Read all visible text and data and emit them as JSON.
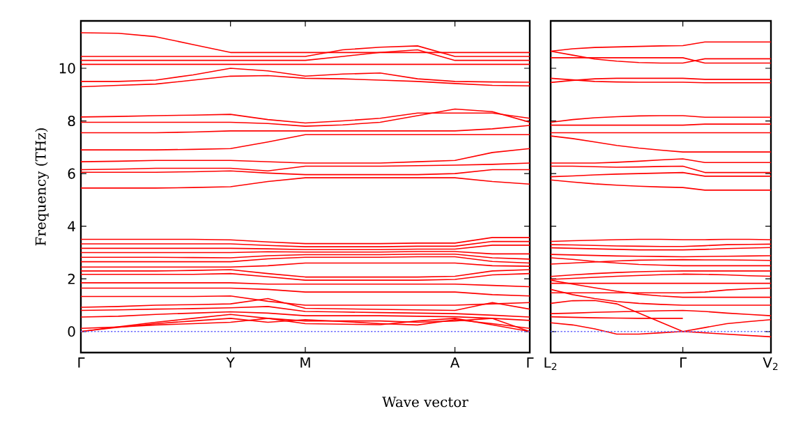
{
  "chart_data": [
    {
      "type": "line",
      "ylabel": "Frequency (THz)",
      "xlabel": "Wave vector",
      "ylim": [
        -0.8,
        11.8
      ],
      "categories": [
        "Γ",
        null,
        null,
        null,
        "Y",
        null,
        "M",
        null,
        null,
        null,
        "A",
        null,
        "Γ"
      ],
      "yticks": [
        0,
        2,
        4,
        6,
        8,
        10
      ],
      "ref_lines": [
        {
          "axis": "y",
          "value": 0,
          "color": "#6666ff",
          "line_style": "dotted"
        }
      ],
      "series": [
        {
          "color": "#ff0000",
          "values": [
            11.35,
            11.33,
            11.2,
            10.9,
            10.6,
            10.6,
            10.6,
            10.6,
            10.6,
            10.6,
            10.6,
            10.6,
            10.6
          ]
        },
        {
          "color": "#ff0000",
          "values": [
            10.45,
            10.45,
            10.45,
            10.45,
            10.45,
            10.45,
            10.45,
            10.7,
            10.8,
            10.85,
            10.45,
            10.45,
            10.45
          ]
        },
        {
          "color": "#ff0000",
          "values": [
            10.3,
            10.3,
            10.3,
            10.3,
            10.3,
            10.3,
            10.3,
            10.45,
            10.6,
            10.7,
            10.3,
            10.3,
            10.3
          ]
        },
        {
          "color": "#ff0000",
          "values": [
            10.15,
            10.15,
            10.15,
            10.15,
            10.15,
            10.15,
            10.15,
            10.15,
            10.15,
            10.15,
            10.15,
            10.15,
            10.15
          ]
        },
        {
          "color": "#ff0000",
          "values": [
            9.5,
            9.5,
            9.55,
            9.75,
            10.0,
            9.9,
            9.7,
            9.78,
            9.82,
            9.6,
            9.5,
            9.48,
            9.47
          ]
        },
        {
          "color": "#ff0000",
          "values": [
            9.3,
            9.35,
            9.4,
            9.55,
            9.7,
            9.72,
            9.62,
            9.6,
            9.55,
            9.5,
            9.42,
            9.35,
            9.33
          ]
        },
        {
          "color": "#ff0000",
          "values": [
            8.15,
            8.17,
            8.2,
            8.22,
            8.25,
            8.05,
            7.92,
            8.0,
            8.1,
            8.3,
            8.3,
            8.3,
            8.1
          ]
        },
        {
          "color": "#ff0000",
          "values": [
            7.95,
            7.95,
            7.95,
            7.95,
            7.95,
            7.9,
            7.8,
            7.85,
            7.95,
            8.2,
            8.45,
            8.35,
            7.95
          ]
        },
        {
          "color": "#ff0000",
          "values": [
            7.55,
            7.55,
            7.55,
            7.58,
            7.62,
            7.62,
            7.62,
            7.62,
            7.62,
            7.62,
            7.62,
            7.7,
            7.83
          ]
        },
        {
          "color": "#ff0000",
          "values": [
            6.9,
            6.9,
            6.9,
            6.92,
            6.95,
            7.2,
            7.48,
            7.48,
            7.48,
            7.48,
            7.48,
            7.48,
            7.48
          ]
        },
        {
          "color": "#ff0000",
          "values": [
            6.45,
            6.47,
            6.5,
            6.5,
            6.5,
            6.45,
            6.4,
            6.4,
            6.4,
            6.45,
            6.5,
            6.8,
            6.95
          ]
        },
        {
          "color": "#ff0000",
          "values": [
            6.15,
            6.17,
            6.2,
            6.2,
            6.2,
            6.1,
            6.28,
            6.28,
            6.28,
            6.3,
            6.32,
            6.35,
            6.4
          ]
        },
        {
          "color": "#ff0000",
          "values": [
            6.05,
            6.05,
            6.05,
            6.07,
            6.1,
            6.02,
            5.96,
            5.96,
            5.96,
            5.96,
            6.0,
            6.15,
            6.15
          ]
        },
        {
          "color": "#ff0000",
          "values": [
            5.45,
            5.45,
            5.45,
            5.47,
            5.5,
            5.7,
            5.84,
            5.84,
            5.84,
            5.84,
            5.84,
            5.7,
            5.6
          ]
        },
        {
          "color": "#ff0000",
          "values": [
            3.5,
            3.5,
            3.5,
            3.5,
            3.48,
            3.4,
            3.34,
            3.34,
            3.34,
            3.36,
            3.36,
            3.57,
            3.57
          ]
        },
        {
          "color": "#ff0000",
          "values": [
            3.33,
            3.33,
            3.33,
            3.33,
            3.33,
            3.27,
            3.22,
            3.22,
            3.22,
            3.24,
            3.24,
            3.42,
            3.42
          ]
        },
        {
          "color": "#ff0000",
          "values": [
            3.16,
            3.16,
            3.16,
            3.16,
            3.16,
            3.14,
            3.11,
            3.11,
            3.11,
            3.13,
            3.13,
            3.28,
            3.28
          ]
        },
        {
          "color": "#ff0000",
          "values": [
            3.0,
            3.0,
            3.0,
            3.0,
            3.0,
            3.03,
            3.02,
            3.02,
            3.02,
            3.04,
            3.04,
            2.95,
            2.95
          ]
        },
        {
          "color": "#ff0000",
          "values": [
            2.82,
            2.82,
            2.82,
            2.81,
            2.8,
            2.88,
            2.92,
            2.92,
            2.92,
            2.94,
            2.94,
            2.8,
            2.75
          ]
        },
        {
          "color": "#ff0000",
          "values": [
            2.65,
            2.65,
            2.65,
            2.65,
            2.65,
            2.76,
            2.82,
            2.82,
            2.82,
            2.84,
            2.84,
            2.66,
            2.6
          ]
        },
        {
          "color": "#ff0000",
          "values": [
            2.45,
            2.45,
            2.45,
            2.45,
            2.45,
            2.5,
            2.6,
            2.6,
            2.6,
            2.6,
            2.6,
            2.5,
            2.48
          ]
        },
        {
          "color": "#ff0000",
          "values": [
            2.3,
            2.3,
            2.3,
            2.32,
            2.35,
            2.2,
            2.07,
            2.07,
            2.07,
            2.07,
            2.1,
            2.3,
            2.35
          ]
        },
        {
          "color": "#ff0000",
          "values": [
            2.17,
            2.17,
            2.17,
            2.17,
            2.2,
            2.08,
            1.95,
            1.95,
            1.95,
            1.95,
            1.98,
            2.15,
            2.2
          ]
        },
        {
          "color": "#ff0000",
          "values": [
            1.85,
            1.85,
            1.85,
            1.85,
            1.85,
            1.8,
            1.8,
            1.8,
            1.8,
            1.8,
            1.8,
            1.75,
            1.7
          ]
        },
        {
          "color": "#ff0000",
          "values": [
            1.65,
            1.65,
            1.65,
            1.65,
            1.65,
            1.6,
            1.5,
            1.5,
            1.5,
            1.5,
            1.5,
            1.4,
            1.35
          ]
        },
        {
          "color": "#ff0000",
          "values": [
            1.33,
            1.33,
            1.33,
            1.33,
            1.35,
            1.15,
            1.0,
            1.0,
            1.0,
            1.0,
            1.0,
            1.05,
            1.1
          ]
        },
        {
          "color": "#ff0000",
          "values": [
            0.92,
            0.95,
            1.0,
            1.02,
            1.05,
            1.25,
            0.88,
            0.86,
            0.84,
            0.82,
            0.8,
            1.1,
            0.85
          ]
        },
        {
          "color": "#ff0000",
          "values": [
            0.8,
            0.82,
            0.85,
            0.87,
            0.9,
            0.95,
            0.76,
            0.74,
            0.72,
            0.7,
            0.68,
            0.62,
            0.55
          ]
        },
        {
          "color": "#ff0000",
          "values": [
            0.55,
            0.58,
            0.65,
            0.7,
            0.75,
            0.7,
            0.6,
            0.6,
            0.6,
            0.58,
            0.56,
            0.5,
            0.42
          ]
        },
        {
          "color": "#ff0000",
          "values": [
            0.0,
            0.18,
            0.35,
            0.5,
            0.65,
            0.5,
            0.4,
            0.4,
            0.4,
            0.35,
            0.4,
            0.5,
            0.0
          ]
        },
        {
          "color": "#ff0000",
          "values": [
            0.0,
            0.16,
            0.3,
            0.4,
            0.5,
            0.35,
            0.45,
            0.38,
            0.3,
            0.25,
            0.45,
            0.3,
            0.12
          ]
        },
        {
          "color": "#ff0000",
          "values": [
            0.12,
            0.17,
            0.25,
            0.3,
            0.35,
            0.5,
            0.3,
            0.28,
            0.26,
            0.4,
            0.5,
            0.25,
            0.0
          ]
        }
      ]
    },
    {
      "type": "line",
      "ylim": [
        -0.8,
        11.8
      ],
      "tick_labels": "x",
      "categories": [
        "L$_{2}$",
        null,
        null,
        null,
        null,
        null,
        "Γ",
        null,
        null,
        null,
        "V$_{2}$"
      ],
      "yticks": [
        {
          "value": 0,
          "label": null
        },
        {
          "value": 2,
          "label": null
        },
        {
          "value": 4,
          "label": null
        },
        {
          "value": 6,
          "label": null
        },
        {
          "value": 8,
          "label": null
        },
        {
          "value": 10,
          "label": null
        }
      ],
      "ref_lines": [
        {
          "axis": "y",
          "value": 0,
          "color": "#6666ff",
          "line_style": "dotted"
        }
      ],
      "series": [
        {
          "color": "#ff0000",
          "values": [
            10.65,
            10.74,
            10.79,
            10.81,
            10.83,
            10.85,
            10.86,
            11.0,
            11.0,
            11.0,
            11.0
          ]
        },
        {
          "color": "#ff0000",
          "values": [
            10.65,
            10.5,
            10.35,
            10.27,
            10.22,
            10.2,
            10.2,
            10.36,
            10.36,
            10.36,
            10.36
          ]
        },
        {
          "color": "#ff0000",
          "values": [
            10.4,
            10.4,
            10.4,
            10.4,
            10.4,
            10.4,
            10.4,
            10.2,
            10.2,
            10.2,
            10.2
          ]
        },
        {
          "color": "#ff0000",
          "values": [
            9.62,
            9.56,
            9.5,
            9.48,
            9.47,
            9.47,
            9.47,
            9.45,
            9.45,
            9.45,
            9.45
          ]
        },
        {
          "color": "#ff0000",
          "values": [
            9.46,
            9.54,
            9.6,
            9.62,
            9.62,
            9.62,
            9.62,
            9.58,
            9.58,
            9.58,
            9.58
          ]
        },
        {
          "color": "#ff0000",
          "values": [
            7.95,
            8.05,
            8.12,
            8.16,
            8.19,
            8.2,
            8.2,
            8.14,
            8.14,
            8.14,
            8.14
          ]
        },
        {
          "color": "#ff0000",
          "values": [
            7.84,
            7.84,
            7.84,
            7.84,
            7.84,
            7.84,
            7.84,
            7.88,
            7.88,
            7.88,
            7.88
          ]
        },
        {
          "color": "#ff0000",
          "values": [
            7.43,
            7.33,
            7.2,
            7.07,
            6.97,
            6.89,
            6.82,
            6.82,
            6.82,
            6.82,
            6.82
          ]
        },
        {
          "color": "#ff0000",
          "values": [
            7.55,
            7.55,
            7.55,
            7.55,
            7.55,
            7.55,
            7.55,
            7.55,
            7.55,
            7.55,
            7.55
          ]
        },
        {
          "color": "#ff0000",
          "values": [
            6.4,
            6.4,
            6.4,
            6.43,
            6.47,
            6.52,
            6.56,
            6.42,
            6.42,
            6.42,
            6.42
          ]
        },
        {
          "color": "#ff0000",
          "values": [
            6.28,
            6.28,
            6.26,
            6.24,
            6.25,
            6.27,
            6.28,
            6.04,
            6.04,
            6.04,
            6.04
          ]
        },
        {
          "color": "#ff0000",
          "values": [
            5.88,
            5.91,
            5.95,
            5.98,
            6.0,
            6.02,
            6.04,
            5.9,
            5.9,
            5.9,
            5.9
          ]
        },
        {
          "color": "#ff0000",
          "values": [
            5.76,
            5.68,
            5.61,
            5.56,
            5.52,
            5.49,
            5.47,
            5.37,
            5.37,
            5.37,
            5.37
          ]
        },
        {
          "color": "#ff0000",
          "values": [
            3.42,
            3.45,
            3.47,
            3.49,
            3.5,
            3.5,
            3.49,
            3.49,
            3.5,
            3.5,
            3.49
          ]
        },
        {
          "color": "#ff0000",
          "values": [
            3.3,
            3.29,
            3.27,
            3.25,
            3.24,
            3.23,
            3.23,
            3.26,
            3.3,
            3.31,
            3.32
          ]
        },
        {
          "color": "#ff0000",
          "values": [
            3.18,
            3.16,
            3.14,
            3.12,
            3.1,
            3.1,
            3.1,
            3.12,
            3.15,
            3.17,
            3.19
          ]
        },
        {
          "color": "#ff0000",
          "values": [
            2.93,
            2.91,
            2.89,
            2.87,
            2.86,
            2.85,
            2.84,
            2.85,
            2.86,
            2.87,
            2.88
          ]
        },
        {
          "color": "#ff0000",
          "values": [
            2.56,
            2.6,
            2.64,
            2.68,
            2.71,
            2.72,
            2.73,
            2.72,
            2.72,
            2.71,
            2.7
          ]
        },
        {
          "color": "#ff0000",
          "values": [
            2.8,
            2.74,
            2.66,
            2.6,
            2.55,
            2.52,
            2.5,
            2.5,
            2.5,
            2.5,
            2.5
          ]
        },
        {
          "color": "#ff0000",
          "values": [
            2.09,
            2.15,
            2.2,
            2.24,
            2.27,
            2.29,
            2.3,
            2.3,
            2.3,
            2.3,
            2.3
          ]
        },
        {
          "color": "#ff0000",
          "values": [
            1.98,
            2.02,
            2.06,
            2.1,
            2.13,
            2.16,
            2.18,
            2.17,
            2.15,
            2.12,
            2.1
          ]
        },
        {
          "color": "#ff0000",
          "values": [
            1.83,
            1.83,
            1.83,
            1.83,
            1.83,
            1.83,
            1.83,
            1.83,
            1.83,
            1.83,
            1.83
          ]
        },
        {
          "color": "#ff0000",
          "values": [
            1.47,
            1.47,
            1.47,
            1.47,
            1.47,
            1.47,
            1.47,
            1.5,
            1.58,
            1.62,
            1.65
          ]
        },
        {
          "color": "#ff0000",
          "values": [
            1.95,
            1.8,
            1.66,
            1.53,
            1.42,
            1.35,
            1.3,
            1.3,
            1.3,
            1.3,
            1.3
          ]
        },
        {
          "color": "#ff0000",
          "values": [
            1.07,
            1.17,
            1.18,
            1.05,
            0.7,
            0.35,
            0.0,
            0.15,
            0.3,
            0.38,
            0.45
          ]
        },
        {
          "color": "#ff0000",
          "values": [
            1.6,
            1.4,
            1.25,
            1.14,
            1.07,
            1.03,
            1.0,
            1.0,
            1.0,
            1.0,
            1.0
          ]
        },
        {
          "color": "#ff0000",
          "values": [
            0.68,
            0.7,
            0.73,
            0.75,
            0.77,
            0.79,
            0.8,
            0.76,
            0.7,
            0.65,
            0.6
          ]
        },
        {
          "color": "#ff0000",
          "values": [
            0.56,
            0.54,
            0.52,
            0.51,
            0.5,
            0.5,
            0.5,
            null,
            null,
            null,
            null
          ]
        },
        {
          "color": "#ff0000",
          "values": [
            0.33,
            0.25,
            0.1,
            -0.1,
            -0.1,
            -0.05,
            0.0,
            -0.05,
            -0.1,
            -0.15,
            -0.2
          ]
        }
      ]
    }
  ]
}
